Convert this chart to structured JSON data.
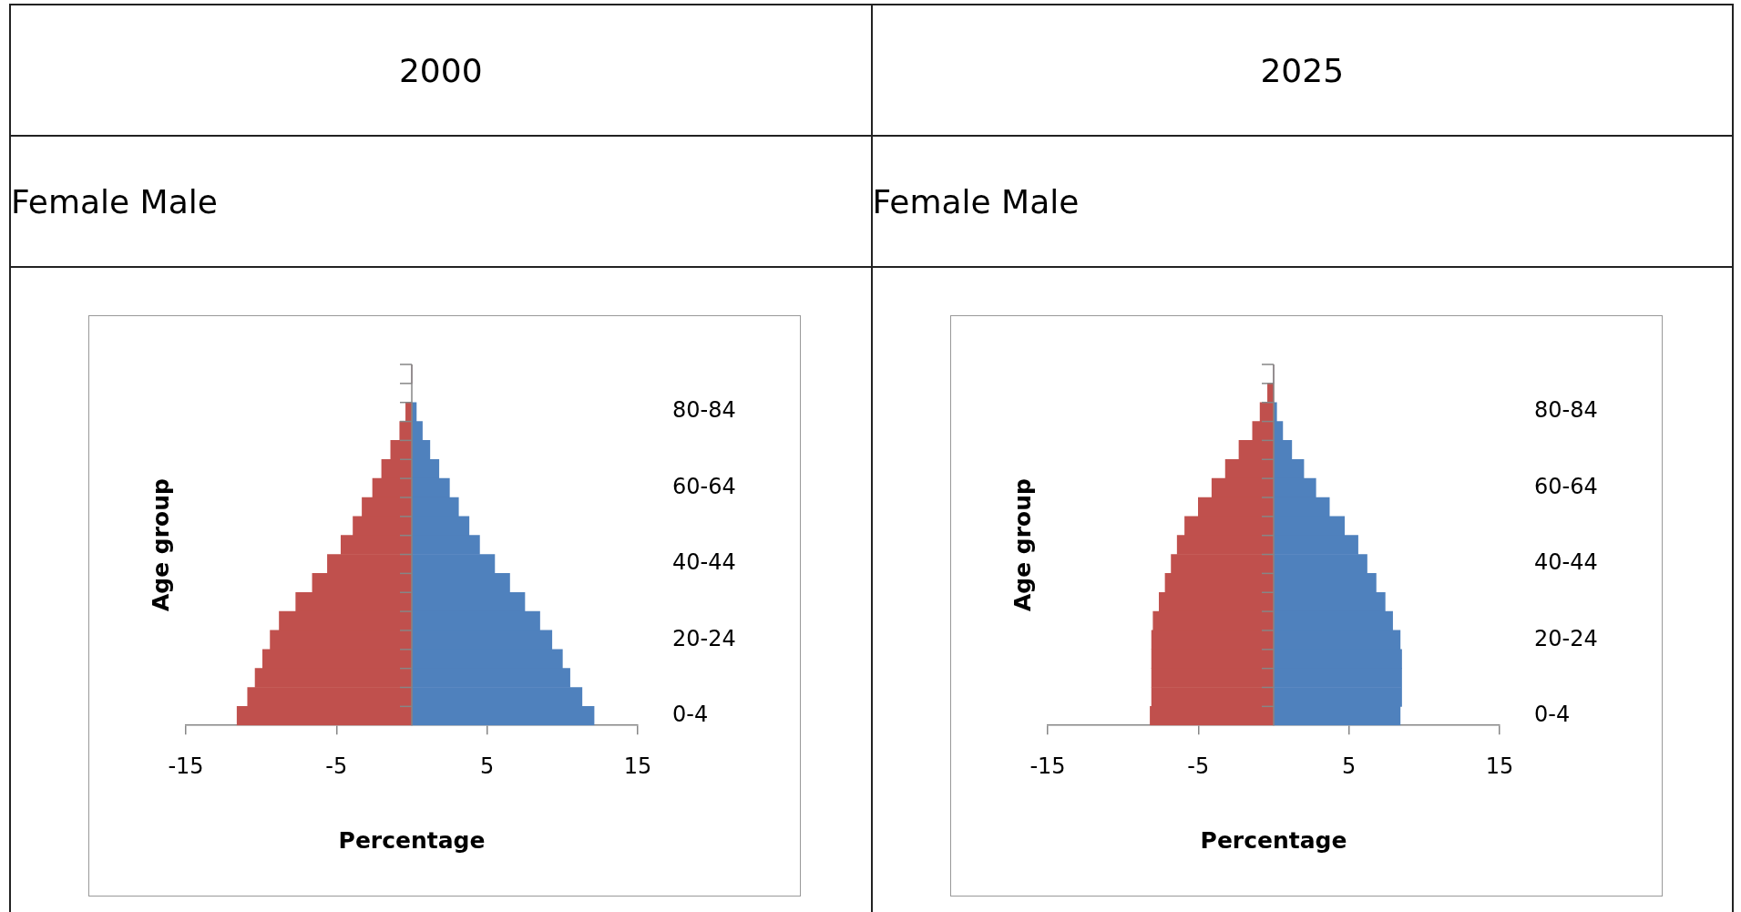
{
  "chart_data": [
    {
      "type": "bar",
      "title": "2000",
      "subtitle": "Female Male",
      "orientation": "horizontal",
      "stacked": true,
      "grid": false,
      "legend": false,
      "categories": [
        null,
        null,
        "80-84",
        null,
        null,
        null,
        "60-64",
        null,
        null,
        null,
        "40-44",
        null,
        null,
        null,
        "20-24",
        null,
        null,
        null,
        "0-4"
      ],
      "series": [
        {
          "color": "#c0504d",
          "values": [
            0,
            null,
            -0.4,
            -0.8,
            -1.4,
            -2.0,
            -2.6,
            -3.3,
            -3.9,
            -4.7,
            -5.6,
            -6.6,
            -7.7,
            -8.8,
            -9.4,
            -9.9,
            -10.4,
            -10.9,
            -11.6
          ]
        },
        {
          "color": "#4f81bd",
          "values": [
            0,
            null,
            0.3,
            0.7,
            1.2,
            1.8,
            2.5,
            3.1,
            3.8,
            4.5,
            5.5,
            6.5,
            7.5,
            8.5,
            9.3,
            10.0,
            10.5,
            11.3,
            12.1
          ]
        }
      ],
      "xlim": [
        -15,
        15
      ],
      "xticks": [
        -15,
        -5,
        5,
        15
      ],
      "xlabel": "Percentage",
      "ylabel": "Age group"
    },
    {
      "type": "bar",
      "title": "2025",
      "subtitle": "Female Male",
      "orientation": "horizontal",
      "stacked": true,
      "grid": false,
      "legend": false,
      "categories": [
        null,
        null,
        "80-84",
        null,
        null,
        null,
        "60-64",
        null,
        null,
        null,
        "40-44",
        null,
        null,
        null,
        "20-24",
        null,
        null,
        null,
        "0-4"
      ],
      "series": [
        {
          "color": "#c0504d",
          "values": [
            0,
            -0.4,
            -0.9,
            -1.4,
            -2.3,
            -3.2,
            -4.1,
            -5.0,
            -5.9,
            -6.4,
            -6.8,
            -7.2,
            -7.6,
            -8.0,
            -8.1,
            -8.1,
            -8.1,
            -8.1,
            -8.2
          ]
        },
        {
          "color": "#4f81bd",
          "values": [
            0,
            null,
            0.2,
            0.6,
            1.2,
            2.0,
            2.8,
            3.7,
            4.7,
            5.6,
            6.2,
            6.8,
            7.4,
            7.9,
            8.4,
            8.5,
            8.5,
            8.5,
            8.4
          ]
        }
      ],
      "xlim": [
        -15,
        15
      ],
      "xticks": [
        -15,
        -5,
        5,
        15
      ],
      "xlabel": "Percentage",
      "ylabel": "Age group"
    }
  ]
}
